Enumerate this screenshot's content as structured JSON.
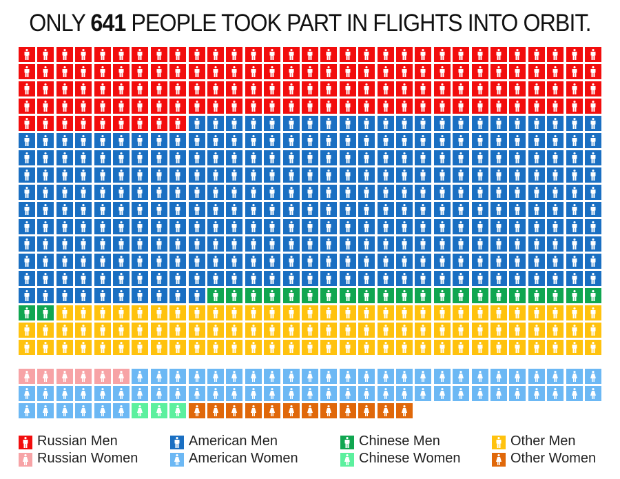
{
  "chart_data": {
    "type": "waffle",
    "title_parts": [
      "ONLY ",
      "641",
      " PEOPLE TOOK PART IN FLIGHTS INTO ORBIT."
    ],
    "total": 641,
    "columns": 31,
    "groups": [
      {
        "name": "Men",
        "series": [
          {
            "name": "Russian Men",
            "value": 133,
            "color": "#f20d0d",
            "figure": "man"
          },
          {
            "name": "American Men",
            "value": 311,
            "color": "#1a6fc2",
            "figure": "man"
          },
          {
            "name": "Chinese Men",
            "value": 23,
            "color": "#10a650",
            "figure": "man"
          },
          {
            "name": "Other Men",
            "value": 91,
            "color": "#ffc20e",
            "figure": "man"
          }
        ]
      },
      {
        "name": "Women",
        "series": [
          {
            "name": "Russian Women",
            "value": 6,
            "color": "#f7a3a6",
            "figure": "woman"
          },
          {
            "name": "American Women",
            "value": 62,
            "color": "#6cb8f4",
            "figure": "woman"
          },
          {
            "name": "Chinese Women",
            "value": 3,
            "color": "#5cf09e",
            "figure": "woman"
          },
          {
            "name": "Other Women",
            "value": 12,
            "color": "#e0680a",
            "figure": "woman"
          }
        ]
      }
    ],
    "legend": {
      "placement": "bottom",
      "items": [
        "Russian Men",
        "Russian Women",
        "American Men",
        "American Women",
        "Chinese Men",
        "Chinese Women",
        "Other Men",
        "Other Women"
      ]
    }
  }
}
